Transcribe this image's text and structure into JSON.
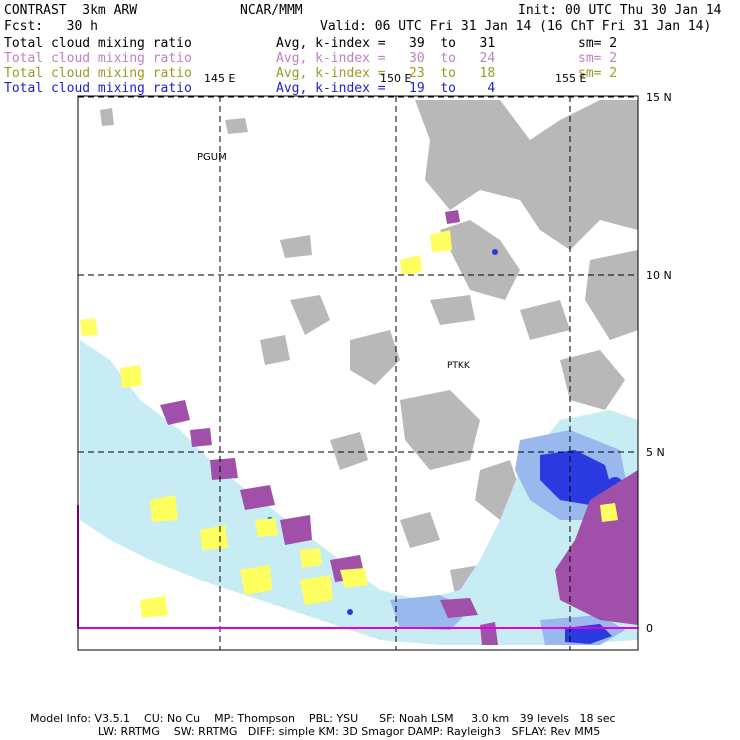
{
  "header": {
    "title_left": "CONTRAST  3km ARW",
    "title_center": "NCAR/MMM",
    "init": "Init: 00 UTC Thu 30 Jan 14",
    "fcst": "Fcst:   30 h",
    "valid": "Valid: 06 UTC Fri 31 Jan 14 (16 ChT Fri 31 Jan 14)"
  },
  "fields": [
    {
      "name": "Total cloud mixing ratio",
      "range": "Avg, k-index =   39  to   31",
      "sm": "sm= 2",
      "color": "#000000"
    },
    {
      "name": "Total cloud mixing ratio",
      "range": "Avg, k-index =   30  to   24",
      "sm": "sm= 2",
      "color": "#c080c8"
    },
    {
      "name": "Total cloud mixing ratio",
      "range": "Avg, k-index =   23  to   18",
      "sm": "sm= 2",
      "color": "#a09820"
    },
    {
      "name": "Total cloud mixing ratio",
      "range": "Avg, k-index =   19  to    4",
      "sm": "",
      "color": "#2020d0"
    }
  ],
  "map": {
    "lon_labels": [
      "145 E",
      "150 E",
      "155 E"
    ],
    "lat_labels": [
      "15 N",
      "10 N",
      "5 N",
      "0"
    ],
    "stations": [
      "PGUM",
      "PTKK"
    ]
  },
  "footer": {
    "line1": "Model Info: V3.5.1    CU: No Cu    MP: Thompson    PBL: YSU      SF: Noah LSM     3.0 km   39 levels   18 sec",
    "line2": "LW: RRTMG    SW: RRTMG   DIFF: simple KM: 3D Smagor DAMP: Rayleigh3   SFLAY: Rev MM5"
  }
}
